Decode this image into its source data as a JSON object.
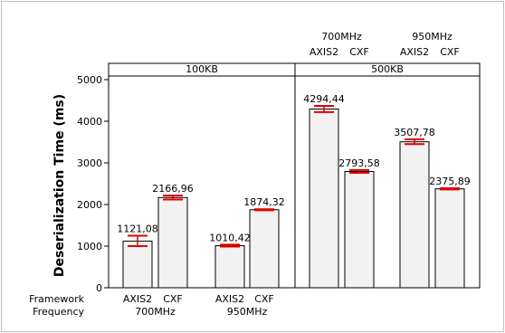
{
  "chart_data": {
    "type": "bar",
    "ylabel": "Deserialization Time (ms)",
    "ylim": [
      0,
      5000
    ],
    "yticks": [
      0,
      1000,
      2000,
      3000,
      4000,
      5000
    ],
    "panels": [
      {
        "label": "100KB",
        "groups": [
          {
            "frequency": "700MHz",
            "bars": [
              {
                "framework": "AXIS2",
                "value": 1121.08,
                "value_label": "1121,08",
                "err_low": 1000,
                "err_high": 1250
              },
              {
                "framework": "CXF",
                "value": 2166.96,
                "value_label": "2166,96",
                "err_low": 2120,
                "err_high": 2215
              }
            ]
          },
          {
            "frequency": "950MHz",
            "bars": [
              {
                "framework": "AXIS2",
                "value": 1010.42,
                "value_label": "1010,42",
                "err_low": 990,
                "err_high": 1035
              },
              {
                "framework": "CXF",
                "value": 1874.32,
                "value_label": "1874,32",
                "err_low": 1862,
                "err_high": 1887
              }
            ]
          }
        ]
      },
      {
        "label": "500KB",
        "groups": [
          {
            "frequency": "700MHz",
            "bars": [
              {
                "framework": "AXIS2",
                "value": 4294.44,
                "value_label": "4294,44",
                "err_low": 4220,
                "err_high": 4370
              },
              {
                "framework": "CXF",
                "value": 2793.58,
                "value_label": "2793,58",
                "err_low": 2760,
                "err_high": 2830
              }
            ]
          },
          {
            "frequency": "950MHz",
            "bars": [
              {
                "framework": "AXIS2",
                "value": 3507.78,
                "value_label": "3507,78",
                "err_low": 3450,
                "err_high": 3565
              },
              {
                "framework": "CXF",
                "value": 2375.89,
                "value_label": "2375,89",
                "err_low": 2362,
                "err_high": 2390
              }
            ]
          }
        ]
      }
    ],
    "row_labels": {
      "framework": "Framework",
      "frequency": "Frequency"
    },
    "colors": {
      "bar_fill": "#f2f2f2",
      "bar_stroke": "#000000",
      "error_bar": "#e00000",
      "frame": "#000000",
      "border": "#c0c0c0"
    }
  }
}
